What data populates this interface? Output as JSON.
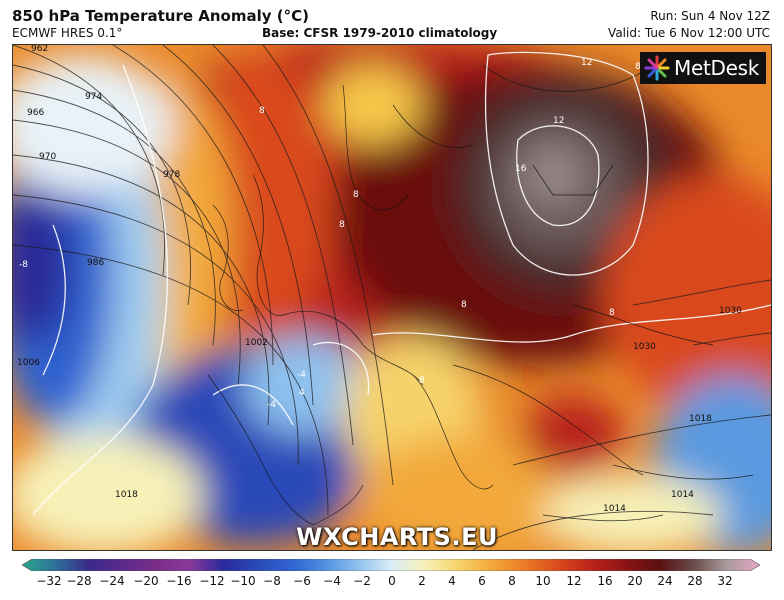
{
  "header": {
    "title": "850 hPa Temperature Anomaly (°C)",
    "model": "ECMWF HRES 0.1°",
    "base": "Base: CFSR 1979-2010 climatology",
    "run": "Run: Sun 4 Nov 12Z",
    "valid": "Valid: Tue 6 Nov 12:00 UTC"
  },
  "brand": {
    "logo_text": "MetDesk",
    "watermark": "WXCHARTS.EU"
  },
  "map": {
    "isobar_labels": [
      "962",
      "966",
      "970",
      "974",
      "978",
      "986",
      "1002",
      "1006",
      "1018",
      "1018",
      "1014",
      "1014",
      "1030",
      "1030"
    ],
    "anomaly_labels": [
      "-8",
      "-4",
      "-4",
      "4",
      "8",
      "8",
      "8",
      "8",
      "8",
      "8",
      "8",
      "12",
      "12",
      "16"
    ]
  },
  "colorbar": {
    "labels": [
      "−32",
      "−28",
      "−24",
      "−20",
      "−16",
      "−12",
      "−10",
      "−8",
      "−6",
      "−4",
      "−2",
      "0",
      "2",
      "4",
      "6",
      "8",
      "10",
      "12",
      "16",
      "20",
      "24",
      "28",
      "32"
    ],
    "colors": [
      "#2aa88c",
      "#2e6f9a",
      "#3a2a8a",
      "#5c2a8c",
      "#7a2e88",
      "#8a3a9a",
      "#2a2a9a",
      "#2a4ab8",
      "#2f62d0",
      "#4f8fe0",
      "#8ec1ef",
      "#d8ecf8",
      "#f7f1b8",
      "#f6d36a",
      "#f2a83a",
      "#ea7a26",
      "#d94a1c",
      "#b8231a",
      "#8a1414",
      "#5a1010",
      "#6a4a4a",
      "#a89a9a",
      "#e8a8c8"
    ]
  }
}
